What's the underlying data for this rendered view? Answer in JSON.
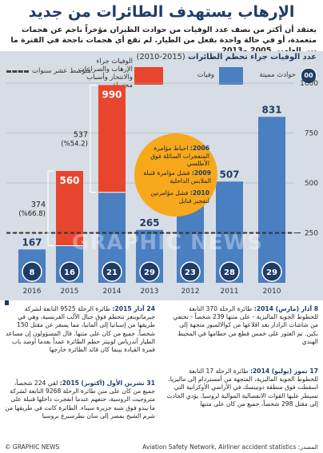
{
  "header": {
    "title": "الإرهاب يستهدف الطائرات من جديد",
    "subtitle": "يعتقد أن أكثر من نصف عدد الوفيات من حوادث الطيران مؤخراً ناجم عن هجمات متعمدة، أو في حالة واحدة بفعل من الطيار. لم تقع أي هجمات ناجحة في الفترة ما بين العامين 2005 و2013"
  },
  "legend": {
    "title": "عدد الوفيات جراء تحطم الطائرات",
    "period": "(2015-2010)",
    "fatal_accidents": "حوادث مميتة",
    "fatalities": "وفيات",
    "terror_fatalities": "الوفيات جراء الإرهاب والصراعات والانتحار وأسباب مجهولة",
    "ten_year_avg": "متوسط عشر سنوات",
    "counter_sample": "00"
  },
  "colors": {
    "navy": "#1f3c66",
    "blue": "#4a7fc1",
    "red": "#e8452e",
    "orange": "#f7a81b",
    "panel": "#d6dde5"
  },
  "chart_data": {
    "type": "bar",
    "categories": [
      "2016",
      "2015",
      "2014",
      "2013",
      "2012",
      "2011",
      "2010"
    ],
    "series": [
      {
        "name": "وفيات",
        "values": [
          167,
          560,
          990,
          265,
          475,
          507,
          831
        ]
      },
      {
        "name": "الوفيات جراء الإرهاب والصراعات والانتحار وأسباب مجهولة",
        "values": [
          0,
          374,
          537,
          0,
          0,
          0,
          0
        ]
      },
      {
        "name": "حوادث مميتة",
        "values": [
          8,
          16,
          21,
          29,
          23,
          28,
          29
        ]
      }
    ],
    "ten_year_average": 250,
    "annotations": [
      {
        "category": "2015",
        "count": "374",
        "pct": "(%66.8)"
      },
      {
        "category": "2014",
        "count": "537",
        "pct": "(%54.2)"
      }
    ],
    "yticks": [
      "250",
      "500",
      "750",
      "1000"
    ],
    "ylim": [
      0,
      1000
    ]
  },
  "events": [
    {
      "year": "2006:",
      "text": "احباط مؤامرة المتفجرات السائلة فوق الأطلسي"
    },
    {
      "year": "2009:",
      "text": "فشل مؤامرة قنبلة الملابس الداخلية"
    },
    {
      "year": "2010:",
      "text": "فشل مؤامرتين لتفجير قنابل"
    }
  ],
  "stories": {
    "s1": {
      "date": "24 آذار 2015:",
      "text": "طائرة الرحلة 9525 التابعة لشركة جيرمانوينغز تتحطم فوق جبال الألب الفرنسية، وهي في طريقها من إسبانيا إلى ألمانيا، مما يسفر عن مقتل 150 شخصاً. جميع من كان على متنها. قال المسؤولون إن مساعد الطيار أندرياس لوبيتز حطم الطائرة عمداً بعدما أوصد باب قمرة القيادة بينما كان قائد الطائرة خارجها"
    },
    "s2": {
      "date": "31 تشرين الأول (أكتوبر) 2015:",
      "text": "لقي 224 شخصاً، جميع من كان على متن طائرة الرحلة 9268 التابعة لشركة متروجيت الروسية، حتفهم عندما انفجرت داخلها قنبلة على ما يبدو فوق شبه جزيرة سيناء. الطائرة كانت في طريقها من شرم الشيخ بمصر إلى سان بطرسبرغ بروسيا"
    },
    "s3": {
      "date": "8 آذار (مارس) 2014:",
      "text": "طائرة الرحلة 370 التابعة للخطوط الجوية الماليزية - على متنها 239 شخصاً - تختفي من شاشات الرادار بعد اقلاعها من كوالالمبور متجهة إلى بكين. تم العثور على خمس قطع من حطامها في المحيط الهندي"
    },
    "s4": {
      "date": "17 تموز (يوليو) 2014:",
      "text": "طائرة الرحلة 17 التابعة للخطوط الجوية الماليزية، المتجهة من أمستردام إلى ماليزيا، اسقطت فوق منطقة دونيتسك في الأراضي الأوكرانية التي تسيطر عليها القوات الانفصالية الموالية لروسيا. يؤدي الحادث إلى مقتل 298 شخصاً، جميع من كان على متنها"
    }
  },
  "footer": {
    "source": "المصدر: Aviation Safety Network, Airliner accident statistics",
    "credit": "© GRAPHIC NEWS"
  },
  "watermark": "GRAPHIC NEWS"
}
